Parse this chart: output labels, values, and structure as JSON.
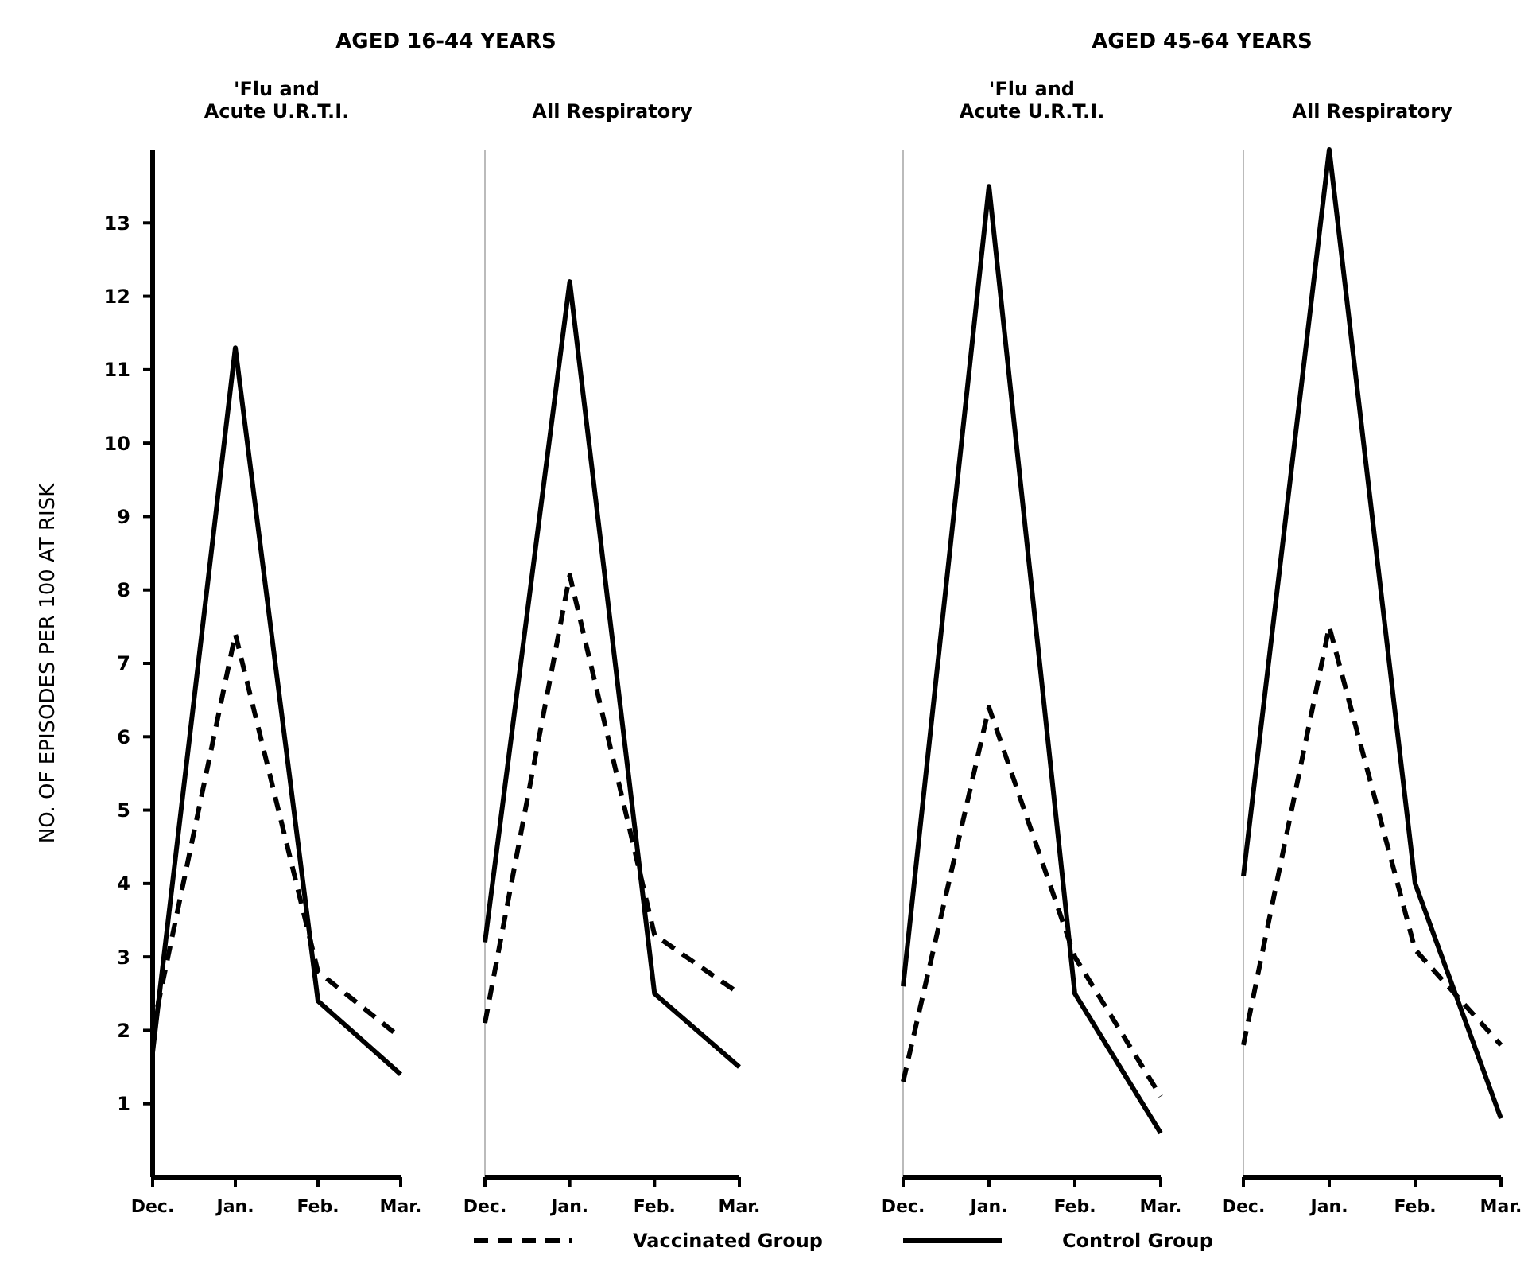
{
  "chart_data": [
    {
      "type": "line",
      "title": "AGED 16-44 YEARS",
      "subtitle": "'Flu and\nAcute U.R.T.I.",
      "ylabel": "NO. OF EPISODES PER 100 AT RISK",
      "categories": [
        "Dec.",
        "Jan.",
        "Feb.",
        "Mar."
      ],
      "ylim": [
        0,
        14
      ],
      "yticks": [
        1,
        2,
        3,
        4,
        5,
        6,
        7,
        8,
        9,
        10,
        11,
        12,
        13
      ],
      "legend": "bottom",
      "grid": false,
      "series": [
        {
          "name": "Vaccinated Group",
          "color": "#000000",
          "line_style": "dashed",
          "values": [
            2.0,
            7.4,
            2.8,
            1.9
          ]
        },
        {
          "name": "Control Group",
          "color": "#000000",
          "line_style": "solid",
          "values": [
            1.7,
            11.3,
            2.4,
            1.4
          ]
        }
      ]
    },
    {
      "type": "line",
      "subtitle": "All Respiratory",
      "categories": [
        "Dec.",
        "Jan.",
        "Feb.",
        "Mar."
      ],
      "ylim": [
        0,
        14
      ],
      "tick_labels": "x",
      "grid": false,
      "series": [
        {
          "color": "#000000",
          "line_style": "dashed",
          "values": [
            2.1,
            8.2,
            3.3,
            2.5
          ]
        },
        {
          "color": "#000000",
          "line_style": "solid",
          "values": [
            3.2,
            12.2,
            2.5,
            1.5
          ]
        }
      ]
    },
    {
      "type": "line",
      "title": "AGED 45-64 YEARS",
      "subtitle": "'Flu and\nAcute U.R.T.I.",
      "categories": [
        "Dec.",
        "Jan.",
        "Feb.",
        "Mar."
      ],
      "ylim": [
        0,
        14
      ],
      "tick_labels": "x",
      "grid": false,
      "series": [
        {
          "color": "#000000",
          "line_style": "dashed",
          "values": [
            1.3,
            6.4,
            3.0,
            1.1
          ]
        },
        {
          "color": "#000000",
          "line_style": "solid",
          "values": [
            2.6,
            13.5,
            2.5,
            0.6
          ]
        }
      ]
    },
    {
      "type": "line",
      "subtitle": "All Respiratory",
      "categories": [
        "Dec.",
        "Jan.",
        "Feb.",
        "Mar."
      ],
      "ylim": [
        0,
        14
      ],
      "tick_labels": "x",
      "grid": false,
      "series": [
        {
          "color": "#000000",
          "line_style": "dashed",
          "values": [
            1.8,
            7.5,
            3.1,
            1.8
          ]
        },
        {
          "color": "#000000",
          "line_style": "solid",
          "values": [
            4.1,
            14.0,
            4.0,
            0.8
          ]
        }
      ]
    }
  ]
}
